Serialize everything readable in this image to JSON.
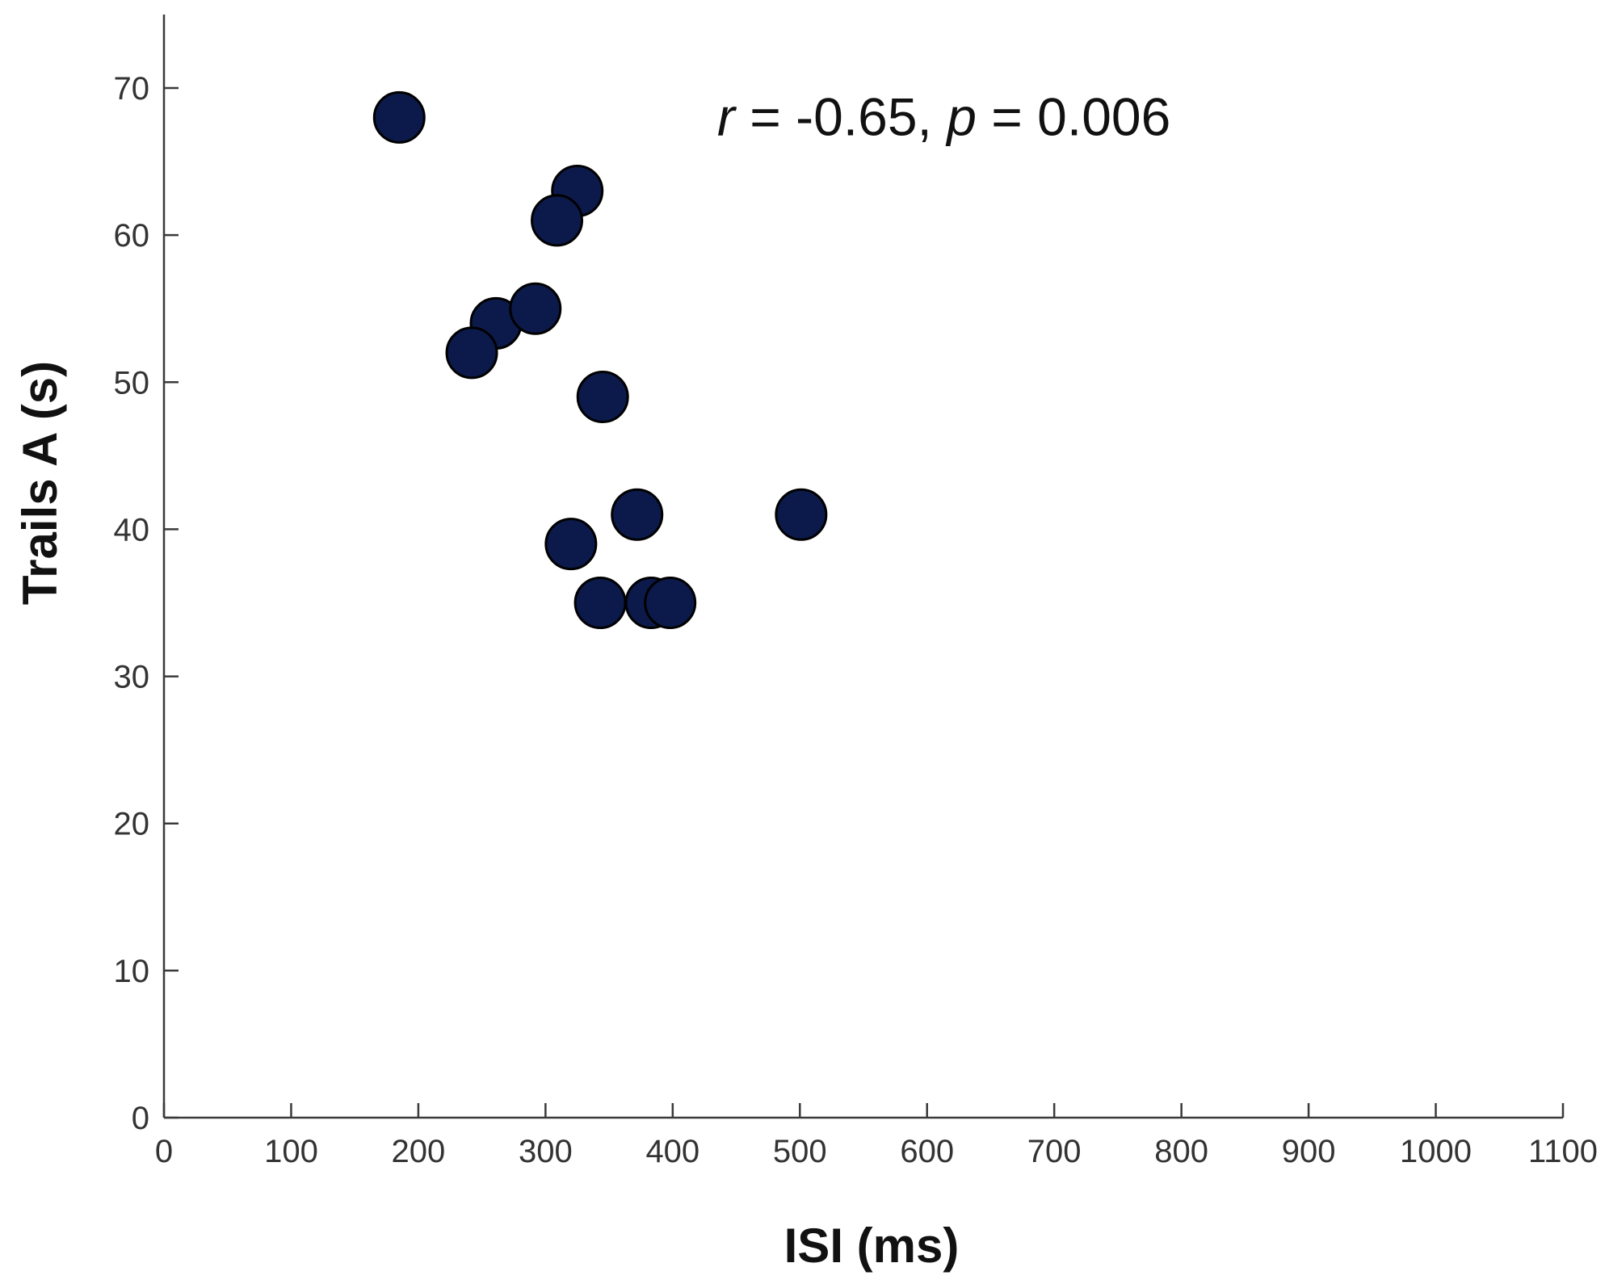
{
  "chart_data": {
    "type": "scatter",
    "xlabel": "ISI (ms)",
    "ylabel": "Trails A (s)",
    "xlim": [
      0,
      1100
    ],
    "ylim": [
      0,
      75
    ],
    "xticks": [
      0,
      100,
      200,
      300,
      400,
      500,
      600,
      700,
      800,
      900,
      1000,
      1100
    ],
    "yticks": [
      0,
      10,
      20,
      30,
      40,
      50,
      60,
      70
    ],
    "grid": false,
    "marker_color": "#0b1a4a",
    "annotation": {
      "r_symbol": "r",
      "r_text": " = -0.65, ",
      "p_symbol": "p",
      "p_text": " = 0.006",
      "anchor_x": 435,
      "anchor_y": 68
    },
    "series": [
      {
        "points": [
          {
            "x": 185,
            "y": 68
          },
          {
            "x": 325,
            "y": 63
          },
          {
            "x": 309,
            "y": 61
          },
          {
            "x": 261,
            "y": 54
          },
          {
            "x": 292,
            "y": 55
          },
          {
            "x": 242,
            "y": 52
          },
          {
            "x": 345,
            "y": 49
          },
          {
            "x": 372,
            "y": 41
          },
          {
            "x": 501,
            "y": 41
          },
          {
            "x": 320,
            "y": 39
          },
          {
            "x": 343,
            "y": 35
          },
          {
            "x": 383,
            "y": 35
          },
          {
            "x": 398,
            "y": 35
          }
        ]
      }
    ]
  }
}
